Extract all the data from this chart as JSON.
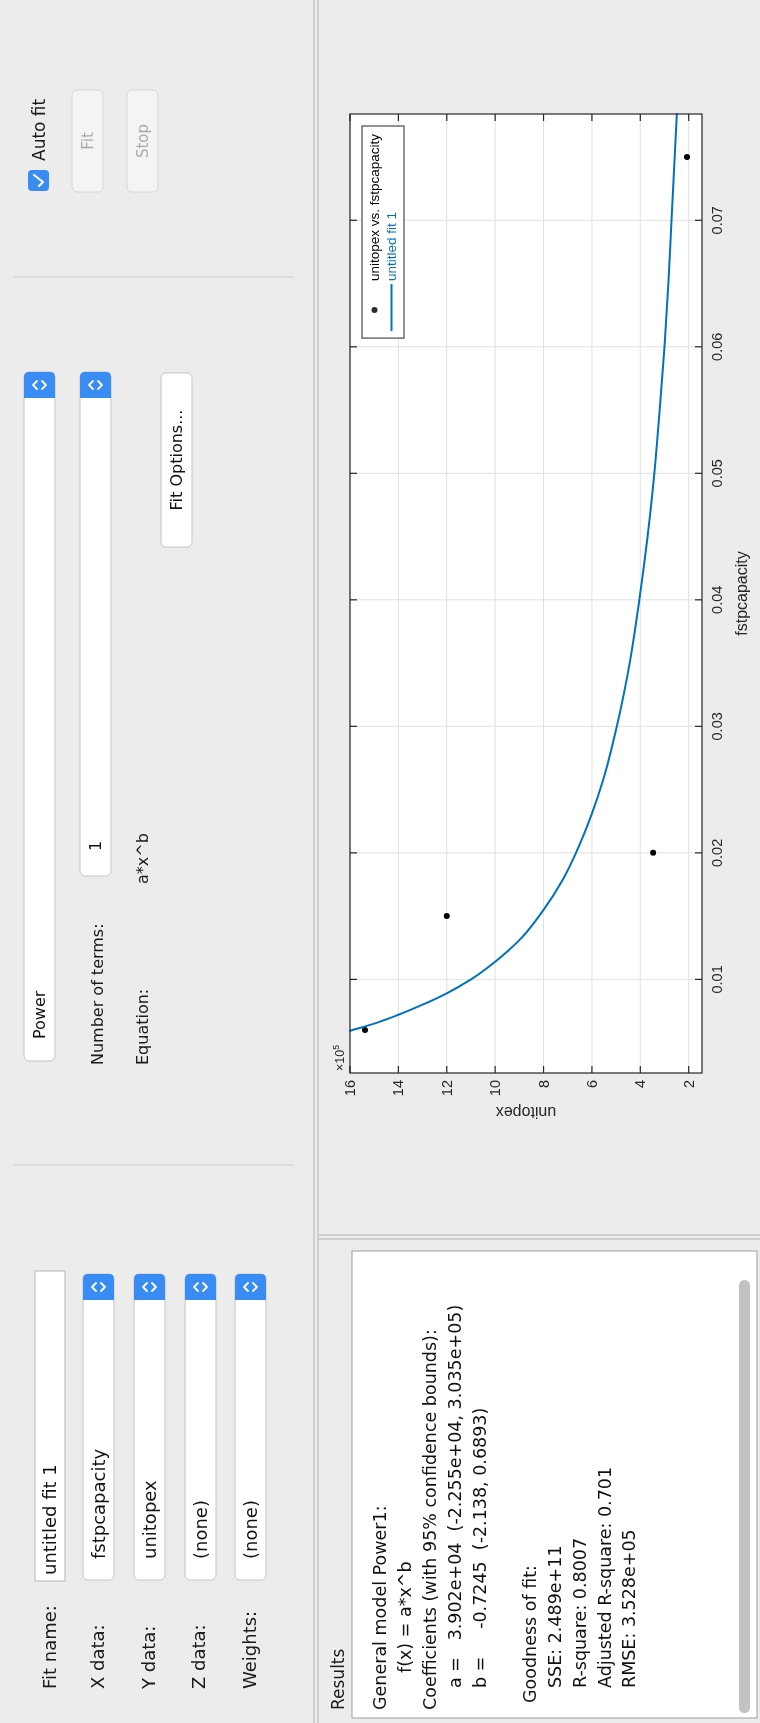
{
  "chart_data": [
    {
      "type": "other",
      "annotations": [
        "Fit name:",
        "untitled fit 1",
        "X data:",
        "fstpcapacity",
        "Y data:",
        "unitopex",
        "Z data:",
        "(none)",
        "Weights:",
        "(none)",
        "Power",
        "Number of terms:",
        "1",
        "Equation:",
        "a*x^b",
        "Fit Options...",
        "Auto fit",
        "Fit",
        "Stop"
      ]
    },
    {
      "type": "other",
      "title": "Results",
      "annotations": [
        "General model Power1:",
        "f(x) = a*x^b",
        "Coefficients (with 95% confidence bounds):",
        "a =   3.902e+04  (-2.255e+04, 3.035e+05)",
        "b =     -0.7245  (-2.138, 0.6893)",
        "Goodness of fit:",
        "SSE: 2.489e+11",
        "R-square: 0.8007",
        "Adjusted R-square: 0.701",
        "RMSE: 3.528e+05"
      ]
    },
    {
      "type": "scatter",
      "xlabel": "unitopex",
      "ylabel": "fstpcapacity",
      "annotations": [
        "×10$^{5}$"
      ],
      "xlim": [
        16,
        1.45
      ],
      "xticks": [
        16,
        14,
        12,
        10,
        8,
        6,
        4,
        2
      ],
      "ylim": [
        0.0026,
        0.0784
      ],
      "yticks": [
        0.01,
        0.02,
        0.03,
        0.04,
        0.05,
        0.06,
        0.07
      ],
      "grid": true,
      "legend": "top left",
      "series": [
        {
          "name": "unitopex vs. fstpcapacity",
          "type": "scatter",
          "marker": "circle",
          "color": "#000000",
          "x": [
            15.38,
            12.0,
            3.47,
            2.07
          ],
          "values": [
            0.006,
            0.015,
            0.02,
            0.075
          ]
        },
        {
          "name": "untitled fit 1",
          "type": "line",
          "color": "#0072bd",
          "x": [
            16.0,
            15.0,
            14.0,
            13.0,
            12.0,
            11.0,
            10.0,
            9.0,
            8.0,
            7.17,
            6.66,
            6.02,
            5.5,
            4.97,
            4.44,
            4.04,
            3.7,
            3.42,
            3.2,
            3.0,
            2.84,
            2.71,
            2.49
          ],
          "values": [
            0.00594,
            0.0065,
            0.0072,
            0.008,
            0.0089,
            0.01,
            0.0114,
            0.0131,
            0.0155,
            0.018,
            0.02,
            0.023,
            0.026,
            0.03,
            0.035,
            0.04,
            0.045,
            0.05,
            0.055,
            0.06,
            0.065,
            0.07,
            0.0784
          ]
        }
      ]
    }
  ]
}
